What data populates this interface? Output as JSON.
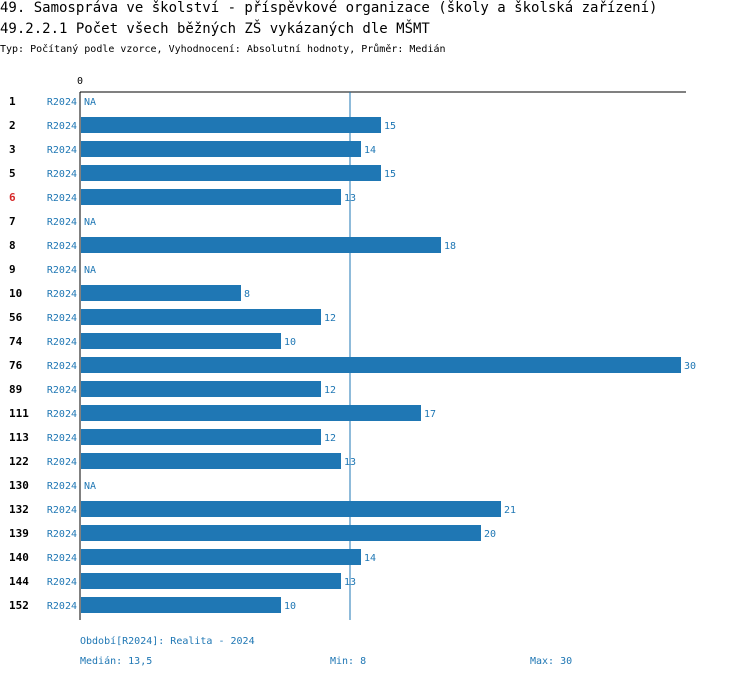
{
  "header": {
    "title": "49. Samospráva ve školství - příspěvkové organizace (školy a školská zařízení)",
    "subtitle": "49.2.2.1 Počet všech běžných ZŠ vykázaných dle MŠMT",
    "type_line": "Typ: Počítaný podle vzorce, Vyhodnocení: Absolutní hodnoty, Průměr: Medián"
  },
  "chart_data": {
    "type": "bar",
    "orientation": "horizontal",
    "x_tick_label": "0",
    "xlim": [
      0,
      30
    ],
    "median_line": 13.5,
    "na_label": "NA",
    "period_code": "R2024",
    "categories": [
      "1",
      "2",
      "3",
      "5",
      "6",
      "7",
      "8",
      "9",
      "10",
      "56",
      "74",
      "76",
      "89",
      "111",
      "113",
      "122",
      "130",
      "132",
      "139",
      "140",
      "144",
      "152"
    ],
    "highlighted": [
      "6"
    ],
    "values": [
      null,
      15,
      14,
      15,
      13,
      null,
      18,
      null,
      8,
      12,
      10,
      30,
      12,
      17,
      12,
      13,
      null,
      21,
      20,
      14,
      13,
      10
    ]
  },
  "footer": {
    "period": "Období[R2024]: Realita - 2024",
    "median": "Medián: 13,5",
    "min": "Min: 8",
    "max": "Max: 30"
  },
  "colors": {
    "bar": "#1f77b4",
    "highlight": "#d62728",
    "text": "#000000"
  }
}
